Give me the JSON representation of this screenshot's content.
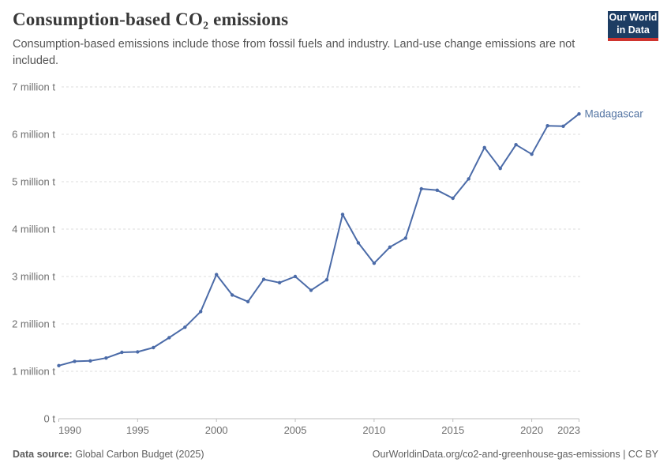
{
  "header": {
    "title": "Consumption-based CO₂ emissions",
    "subtitle": "Consumption-based emissions include those from fossil fuels and industry. Land-use change emissions are not included.",
    "logo": {
      "line1": "Our World",
      "line2": "in Data",
      "bg_color": "#1d3d63",
      "accent_color": "#cf342e"
    }
  },
  "chart_data": {
    "type": "line",
    "title": "Consumption-based CO₂ emissions",
    "entity": "Madagascar",
    "unit": "million tonnes",
    "x": [
      1990,
      1991,
      1992,
      1993,
      1994,
      1995,
      1996,
      1997,
      1998,
      1999,
      2000,
      2001,
      2002,
      2003,
      2004,
      2005,
      2006,
      2007,
      2008,
      2009,
      2010,
      2011,
      2012,
      2013,
      2014,
      2015,
      2016,
      2017,
      2018,
      2019,
      2020,
      2021,
      2022,
      2023
    ],
    "values": [
      1.12,
      1.21,
      1.22,
      1.28,
      1.4,
      1.41,
      1.5,
      1.71,
      1.93,
      2.26,
      3.04,
      2.61,
      2.47,
      2.94,
      2.87,
      3.0,
      2.71,
      2.93,
      4.31,
      3.71,
      3.28,
      3.62,
      3.81,
      4.85,
      4.82,
      4.65,
      5.06,
      5.72,
      5.28,
      5.78,
      5.58,
      6.18,
      6.17,
      6.43
    ],
    "xlim": [
      1990,
      2023
    ],
    "ylim": [
      0,
      7
    ],
    "ytick_labels": [
      "0 t",
      "1 million t",
      "2 million t",
      "3 million t",
      "4 million t",
      "5 million t",
      "6 million t",
      "7 million t"
    ],
    "xticks": [
      1990,
      1995,
      2000,
      2005,
      2010,
      2015,
      2020,
      2023
    ],
    "xtick_labels": [
      "1990",
      "1995",
      "2000",
      "2005",
      "2010",
      "2015",
      "2020",
      "2023"
    ],
    "grid": "horizontal dashed",
    "legend_position": "end-of-line label",
    "line_color": "#4b6ba8",
    "label_color": "#5878a5",
    "axis_text_color": "#6e6e6e",
    "grid_color": "#dddddd",
    "axis_color": "#bfbfbf"
  },
  "footer": {
    "source_label": "Data source:",
    "source_value": " Global Carbon Budget (2025)",
    "credit": "OurWorldinData.org/co2-and-greenhouse-gas-emissions | CC BY"
  }
}
